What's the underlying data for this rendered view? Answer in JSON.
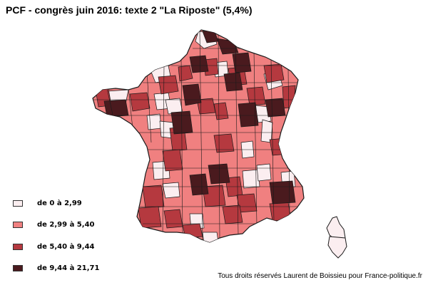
{
  "title": "PCF - congrès juin 2016: texte 2 \"La Riposte\" (5,4%)",
  "colors": {
    "class1": "#fbeef0",
    "class2": "#f08080",
    "class3": "#b5393f",
    "class4": "#4a1a1e",
    "border": "#1a1a1a"
  },
  "legend": [
    {
      "label": "de 0 à 2,99",
      "color": "#fbeef0"
    },
    {
      "label": "de 2,99 à 5,40",
      "color": "#f08080"
    },
    {
      "label": "de 5,40 à 9,44",
      "color": "#b5393f"
    },
    {
      "label": "de 9,44 à 21,71",
      "color": "#4a1a1e"
    }
  ],
  "credit": "Tous droits réservés Laurent de Boissieu pour France-politique.fr"
}
